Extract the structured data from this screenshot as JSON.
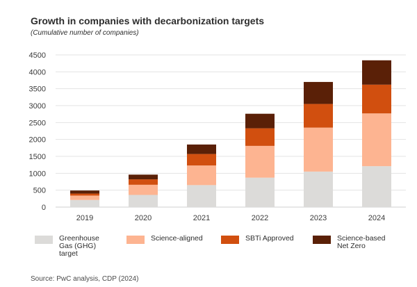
{
  "chart_data": {
    "type": "bar",
    "stacked": true,
    "title": "Growth in companies with decarbonization targets",
    "subtitle": "(Cumulative number of companies)",
    "xlabel": "",
    "ylabel": "",
    "ylim": [
      0,
      4500
    ],
    "yticks": [
      0,
      500,
      1000,
      1500,
      2000,
      2500,
      3000,
      3500,
      4000,
      4500
    ],
    "grid": true,
    "categories": [
      "2019",
      "2020",
      "2021",
      "2022",
      "2023",
      "2024"
    ],
    "series": [
      {
        "name": "Greenhouse Gas (GHG) target",
        "legend_label": "Greenhouse\nGas (GHG)\ntarget",
        "color": "#dcdbd9",
        "values": [
          210,
          360,
          650,
          870,
          1050,
          1210
        ]
      },
      {
        "name": "Science-aligned",
        "legend_label": "Science-aligned",
        "color": "#fdb491",
        "values": [
          130,
          300,
          580,
          940,
          1300,
          1560
        ]
      },
      {
        "name": "SBTi Approved",
        "legend_label": "SBTi Approved",
        "color": "#d14f0f",
        "values": [
          60,
          160,
          340,
          520,
          700,
          850
        ]
      },
      {
        "name": "Science-based Net Zero",
        "legend_label": "Science-based\nNet Zero",
        "color": "#5a2007",
        "values": [
          90,
          140,
          280,
          430,
          650,
          720
        ]
      }
    ]
  },
  "source": "Source: PwC analysis, CDP (2024)"
}
